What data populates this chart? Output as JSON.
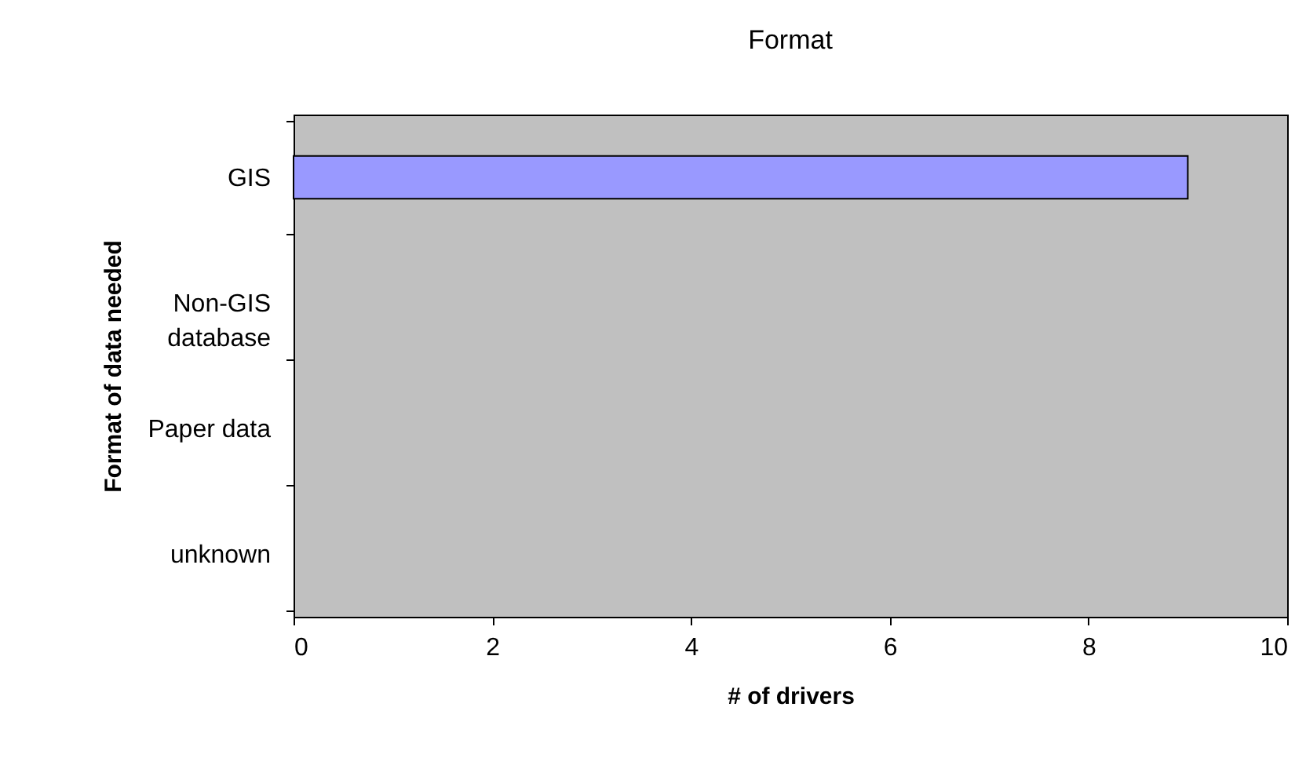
{
  "chart_data": {
    "type": "bar",
    "orientation": "horizontal",
    "title": "Format",
    "xlabel": "# of drivers",
    "ylabel": "Format of data needed",
    "categories": [
      "GIS",
      "Non-GIS database",
      "Paper data",
      "unknown"
    ],
    "values": [
      9,
      0,
      0,
      0
    ],
    "color": "#9999ff",
    "xlim": [
      0,
      10
    ],
    "xticks": [
      0,
      2,
      4,
      6,
      8,
      10
    ],
    "grid": false
  }
}
